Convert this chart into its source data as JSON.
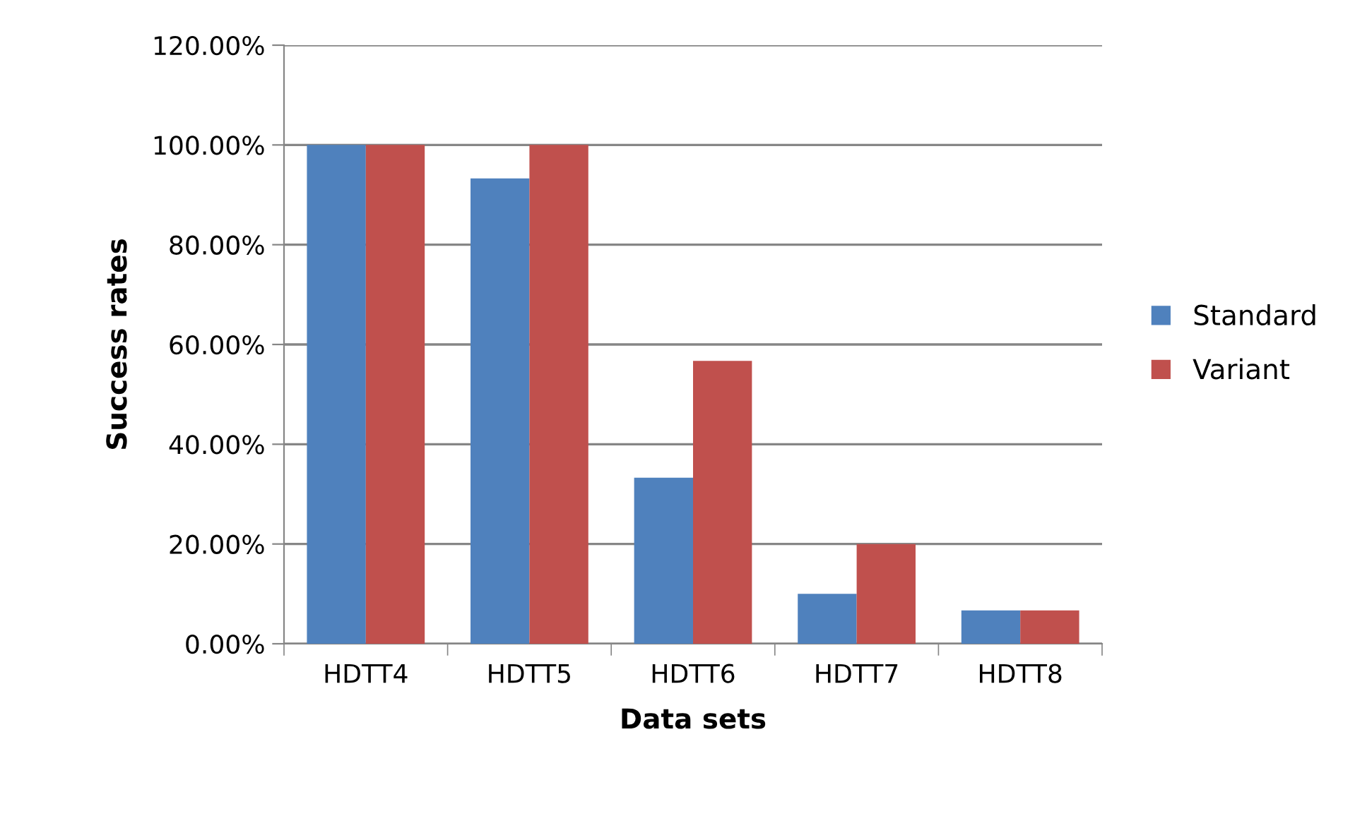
{
  "chart_data": {
    "type": "bar",
    "xlabel": "Data sets",
    "ylabel": "Success rates",
    "categories": [
      "HDTT4",
      "HDTT5",
      "HDTT6",
      "HDTT7",
      "HDTT8"
    ],
    "series": [
      {
        "name": "Standard",
        "color": "#4f81bd",
        "values": [
          100,
          93.3,
          33.3,
          10,
          6.7
        ]
      },
      {
        "name": "Variant",
        "color": "#c0504d",
        "values": [
          100,
          100,
          56.7,
          20,
          6.7
        ]
      }
    ],
    "ylim": [
      0,
      120
    ],
    "yticks": [
      {
        "value": 0,
        "label": "0.00%"
      },
      {
        "value": 20,
        "label": "20.00%"
      },
      {
        "value": 40,
        "label": "40.00%"
      },
      {
        "value": 60,
        "label": "60.00%"
      },
      {
        "value": 80,
        "label": "80.00%"
      },
      {
        "value": 100,
        "label": "100.00%"
      },
      {
        "value": 120,
        "label": "120.00%"
      }
    ],
    "grid": "y",
    "legend": "right"
  }
}
